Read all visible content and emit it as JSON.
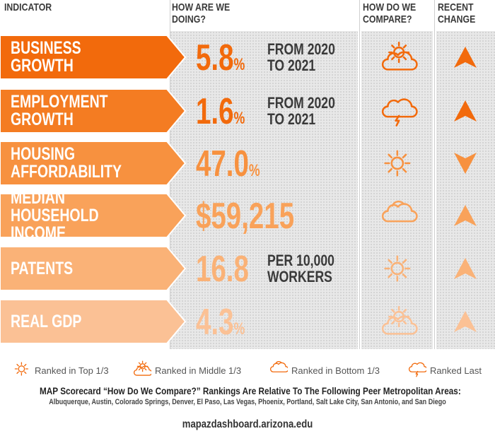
{
  "header": {
    "indicator": "INDICATOR",
    "doing_line1": "HOW ARE WE",
    "doing_line2": "DOING?",
    "compare_line1": "HOW DO WE",
    "compare_line2": "COMPARE?",
    "change_line1": "RECENT",
    "change_line2": "CHANGE"
  },
  "rows": [
    {
      "label": "BUSINESS GROWTH",
      "value": "5.8",
      "suffix": "%",
      "note": "FROM 2020\nTO 2021",
      "ranking": "middle",
      "ranking_icon": "sun-behind-cloud-icon",
      "change": "up",
      "color": "#f26a0c",
      "value_color": "#f26a0c"
    },
    {
      "label": "EMPLOYMENT\nGROWTH",
      "value": "1.6",
      "suffix": "%",
      "note": "FROM 2020\nTO 2021",
      "ranking": "last",
      "ranking_icon": "storm-cloud-icon",
      "change": "up",
      "color": "#f47c22",
      "value_color": "#f26a0c"
    },
    {
      "label": "HOUSING\nAFFORDABILITY",
      "value": "47.0",
      "suffix": "%",
      "note": "",
      "ranking": "top",
      "ranking_icon": "sun-icon",
      "change": "down",
      "color": "#f7913f",
      "value_color": "#f7913f"
    },
    {
      "label": "MEDIAN HOUSEHOLD\nINCOME",
      "value": "$59,215",
      "suffix": "",
      "note": "",
      "ranking": "bottom",
      "ranking_icon": "cloud-icon",
      "change": "up",
      "color": "#f9a25a",
      "value_color": "#f9a25a"
    },
    {
      "label": "PATENTS",
      "value": "16.8",
      "suffix": "",
      "note": "PER 10,000\nWORKERS",
      "ranking": "top",
      "ranking_icon": "sun-icon",
      "change": "up",
      "color": "#fab277",
      "value_color": "#fab277"
    },
    {
      "label": "REAL GDP",
      "value": "4.3",
      "suffix": "%",
      "note": "",
      "ranking": "middle",
      "ranking_icon": "sun-behind-cloud-icon",
      "change": "up",
      "color": "#fbc195",
      "value_color": "#fbc195"
    }
  ],
  "legend": [
    {
      "icon": "sun-icon",
      "label": "Ranked in Top 1/3"
    },
    {
      "icon": "sun-behind-cloud-icon",
      "label": "Ranked in Middle 1/3"
    },
    {
      "icon": "cloud-icon",
      "label": "Ranked in Bottom 1/3"
    },
    {
      "icon": "storm-cloud-icon",
      "label": "Ranked Last"
    }
  ],
  "footnote": {
    "title": "MAP Scorecard “How Do We Compare?” Rankings Are Relative To The Following Peer Metropolitan Areas:",
    "cities": "Albuquerque, Austin, Colorado Springs, Denver, El Paso, Las Vegas, Phoenix, Portland, Salt Lake City, San Antonio, and San Diego"
  },
  "url": "mapazdashboard.arizona.edu",
  "colors": {
    "icon_orange": "#f26a0c",
    "panel": "#e8e8e8",
    "header_text": "#3a3a3a"
  }
}
